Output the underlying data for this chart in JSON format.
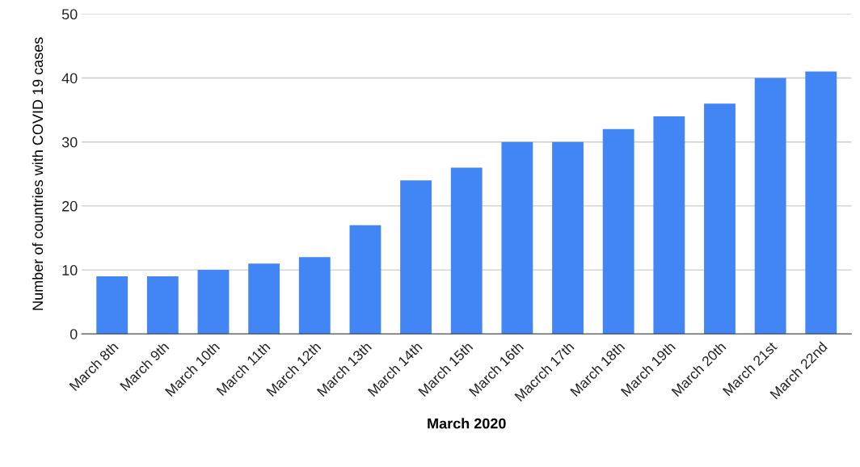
{
  "chart_data": {
    "type": "bar",
    "xlabel": "March 2020",
    "ylabel": "Number of countries with COVID 19 cases",
    "categories": [
      "March 8th",
      "March 9th",
      "March 10th",
      "March 11th",
      "March 12th",
      "March 13th",
      "March 14th",
      "March 15th",
      "March 16th",
      "Macrch 17th",
      "March 18th",
      "March 19th",
      "March 20th",
      "March 21st",
      "March 22nd"
    ],
    "values": [
      9,
      9,
      10,
      11,
      12,
      17,
      24,
      26,
      30,
      30,
      32,
      34,
      36,
      40,
      41
    ],
    "color": "#4285f4",
    "ylim": [
      0,
      50
    ],
    "yticks": [
      0,
      10,
      20,
      30,
      40,
      50
    ],
    "grid": "y"
  }
}
